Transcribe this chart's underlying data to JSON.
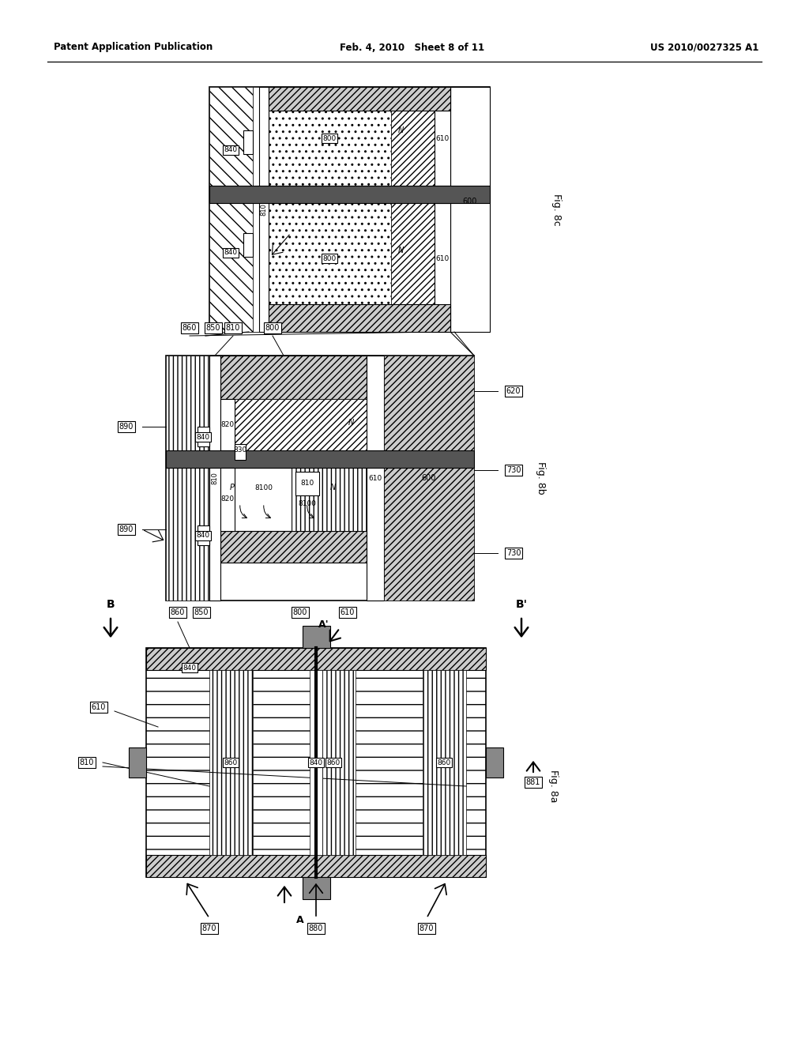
{
  "bg_color": "#ffffff",
  "header_left": "Patent Application Publication",
  "header_mid": "Feb. 4, 2010   Sheet 8 of 11",
  "header_right": "US 2010/0027325 A1"
}
